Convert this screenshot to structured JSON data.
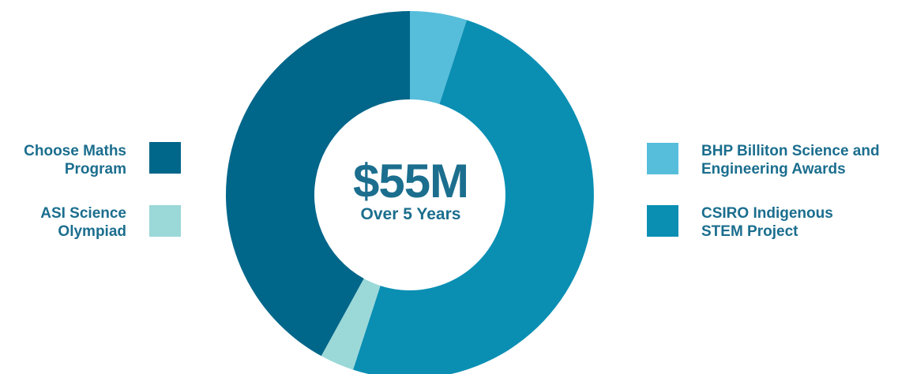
{
  "chart_data": {
    "type": "pie",
    "variant": "donut",
    "center_text": "$55M",
    "center_subtext": "Over 5 Years",
    "categories": [
      "BHP Billiton Science and Engineering Awards",
      "CSIRO Indigenous STEM Project",
      "ASI Science Olympiad",
      "Choose Maths Program"
    ],
    "values": [
      5,
      50,
      3,
      42
    ],
    "colors": [
      "#56bedb",
      "#0a8fb3",
      "#9bd8d8",
      "#00668a"
    ],
    "legend_placement": "left-and-right"
  },
  "legend": {
    "left": [
      {
        "label": "Choose Maths\nProgram",
        "color": "#00668a"
      },
      {
        "label": "ASI Science\nOlympiad",
        "color": "#9bd8d8"
      }
    ],
    "right": [
      {
        "label": "BHP Billiton Science and\nEngineering Awards",
        "color": "#56bedb"
      },
      {
        "label": "CSIRO Indigenous\nSTEM Project",
        "color": "#0a8fb3"
      }
    ]
  },
  "text_color": "#1b6e8e"
}
